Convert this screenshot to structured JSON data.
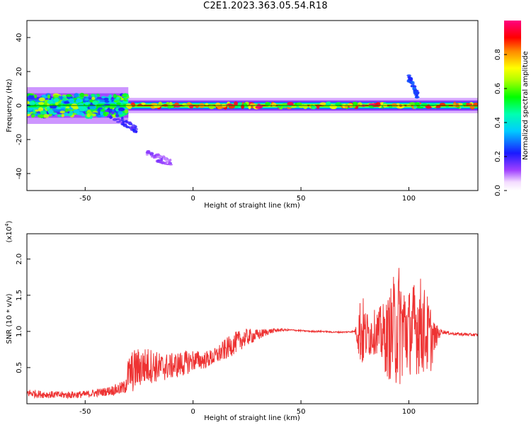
{
  "title": "C2E1.2023.363.05.54.R18",
  "colors": {
    "snr_line": "#ee3333",
    "axes": "#000000",
    "center_line": "#008000"
  },
  "chart_data": [
    {
      "type": "heatmap",
      "xlabel": "Height of straight line (km)",
      "ylabel": "Frequency (Hz)",
      "xlim": [
        -77,
        132
      ],
      "ylim": [
        -50,
        50
      ],
      "xticks": [
        -50,
        0,
        50,
        100
      ],
      "yticks": [
        -40,
        -20,
        0,
        20,
        40
      ],
      "xtick_labels": [
        "-50",
        "0",
        "50",
        "100"
      ],
      "ytick_labels": [
        "-40",
        "-20",
        "0",
        "20",
        "40"
      ],
      "colorbar": {
        "label": "Normalized spectral amplitude",
        "colormap": "rainbow (white-violet-blue-cyan-green-yellow-orange-red-magenta)",
        "range": [
          0,
          1
        ],
        "ticks": [
          0.0,
          0.2,
          0.4,
          0.6,
          0.8
        ],
        "tick_labels": [
          "0.0",
          "0.2",
          "0.4",
          "0.6",
          "0.8"
        ]
      },
      "central_ridge": {
        "frequency_hz": 0,
        "segments": [
          {
            "x": [
              -77,
              -30
            ],
            "amplitude": 0.5,
            "spread_hz": 6
          },
          {
            "x": [
              -30,
              132
            ],
            "amplitude": 0.9,
            "spread_hz": 3
          }
        ]
      },
      "features": [
        {
          "x": [
            -40,
            -26
          ],
          "y": [
            -4,
            -14
          ],
          "amplitude": 0.15
        },
        {
          "x": [
            -22,
            -10
          ],
          "y": [
            -28,
            -34
          ],
          "amplitude": 0.08
        },
        {
          "x": [
            100,
            104
          ],
          "y": [
            16,
            6
          ],
          "amplitude": 0.2
        }
      ]
    },
    {
      "type": "line",
      "xlabel": "Height of straight line (km)",
      "ylabel": "SNR (10 * v/v)",
      "y_multiplier": "(x10^4)",
      "xlim": [
        -77,
        132
      ],
      "ylim": [
        0,
        2.35
      ],
      "xticks": [
        -50,
        0,
        50,
        100
      ],
      "yticks": [
        0.5,
        1.0,
        1.5,
        2.0
      ],
      "xtick_labels": [
        "-50",
        "0",
        "50",
        "100"
      ],
      "ytick_labels": [
        "0.5",
        "1.0",
        "1.5",
        "2.0"
      ],
      "series": [
        {
          "x": [
            -77,
            -70,
            -60,
            -50,
            -40,
            -35,
            -32,
            -30,
            -28,
            -25,
            -20,
            -15,
            -10,
            -5,
            0,
            5,
            10,
            15,
            20,
            25,
            30,
            35,
            40,
            45,
            50,
            55,
            60,
            65,
            70,
            75,
            78,
            80,
            85,
            90,
            95,
            100,
            105,
            110,
            112,
            115,
            120,
            125,
            132
          ],
          "values": [
            0.15,
            0.13,
            0.12,
            0.13,
            0.17,
            0.2,
            0.22,
            0.4,
            0.45,
            0.5,
            0.53,
            0.5,
            0.52,
            0.55,
            0.6,
            0.6,
            0.65,
            0.75,
            0.85,
            0.92,
            0.95,
            1.0,
            1.02,
            1.02,
            1.01,
            1.0,
            1.0,
            0.99,
            0.99,
            1.0,
            1.02,
            0.95,
            1.0,
            0.9,
            1.1,
            1.0,
            1.1,
            0.9,
            0.92,
            1.0,
            0.97,
            0.96,
            0.95
          ],
          "noise_amplitude": [
            0.06,
            0.05,
            0.05,
            0.05,
            0.06,
            0.08,
            0.1,
            0.25,
            0.3,
            0.28,
            0.25,
            0.2,
            0.18,
            0.18,
            0.15,
            0.12,
            0.12,
            0.15,
            0.15,
            0.12,
            0.08,
            0.04,
            0.02,
            0.01,
            0.01,
            0.01,
            0.01,
            0.01,
            0.01,
            0.01,
            0.6,
            0.35,
            0.3,
            0.55,
            0.9,
            0.6,
            0.7,
            0.5,
            0.2,
            0.03,
            0.02,
            0.02,
            0.02
          ]
        }
      ]
    }
  ]
}
